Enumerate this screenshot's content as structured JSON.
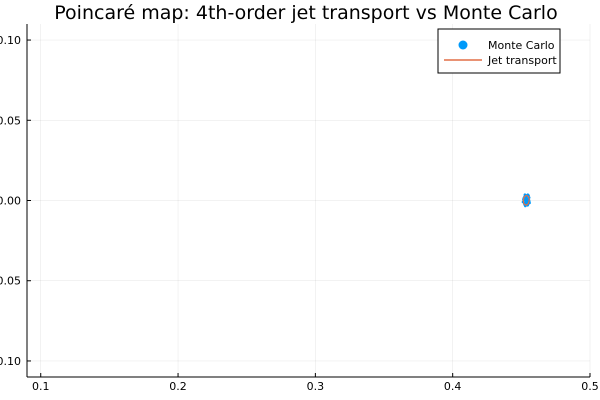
{
  "chart_data": {
    "type": "scatter",
    "title": "Poincaré map: 4th-order jet transport vs Monte Carlo",
    "xlabel": "",
    "ylabel": "",
    "xlim": [
      0.09,
      0.5
    ],
    "ylim": [
      -0.11,
      0.11
    ],
    "x_ticks": [
      0.1,
      0.2,
      0.3,
      0.4,
      0.5
    ],
    "x_tick_labels": [
      "0.1",
      "0.2",
      "0.3",
      "0.4",
      "0.5"
    ],
    "y_ticks": [
      0.1,
      0.05,
      0.0,
      -0.05,
      -0.1
    ],
    "y_tick_labels": [
      "0.10",
      "0.05",
      "0.00",
      "-0.05",
      "-0.10"
    ],
    "grid": true,
    "legend_position": "top-right",
    "legend": [
      "Monte Carlo",
      "Jet transport"
    ],
    "series": [
      {
        "name": "Monte Carlo",
        "kind": "scatter",
        "color": "#009AFA",
        "points": [
          [
            0.453,
            0.0008
          ],
          [
            0.4543,
            0.0026
          ],
          [
            0.4548,
            0.001
          ],
          [
            0.4552,
            -0.0006
          ],
          [
            0.454,
            -0.0018
          ],
          [
            0.4528,
            -0.0012
          ],
          [
            0.4519,
            0.0002
          ],
          [
            0.4535,
            0.0015
          ],
          [
            0.4557,
            0.0018
          ],
          [
            0.4524,
            -0.0026
          ],
          [
            0.4546,
            -0.003
          ],
          [
            0.4536,
            -0.0003
          ],
          [
            0.456,
            -0.0015
          ],
          [
            0.4517,
            0.0014
          ],
          [
            0.4523,
            0.0024
          ],
          [
            0.4541,
            0.0005
          ],
          [
            0.4529,
            -0.0034
          ],
          [
            0.4553,
            0.0031
          ],
          [
            0.4512,
            -0.0009
          ],
          [
            0.4549,
            -0.0024
          ],
          [
            0.4538,
            0.0032
          ],
          [
            0.4521,
            -0.0018
          ],
          [
            0.4544,
            -0.0011
          ],
          [
            0.4533,
            0.0021
          ],
          [
            0.4555,
            0.0004
          ],
          [
            0.4526,
            0.0036
          ],
          [
            0.4547,
            0.0036
          ],
          [
            0.4532,
            -0.0025
          ],
          [
            0.4515,
            0.0006
          ],
          [
            0.4558,
            -0.0005
          ]
        ]
      },
      {
        "name": "Jet transport",
        "kind": "line",
        "color": "#E26F46",
        "points": [
          [
            0.4535,
            0.0033
          ],
          [
            0.4552,
            0.0024
          ],
          [
            0.4558,
            0.0004
          ],
          [
            0.4552,
            -0.0018
          ],
          [
            0.4536,
            -0.003
          ],
          [
            0.452,
            -0.0022
          ],
          [
            0.4514,
            -0.0002
          ],
          [
            0.4519,
            0.002
          ],
          [
            0.4535,
            0.0033
          ]
        ]
      }
    ]
  }
}
